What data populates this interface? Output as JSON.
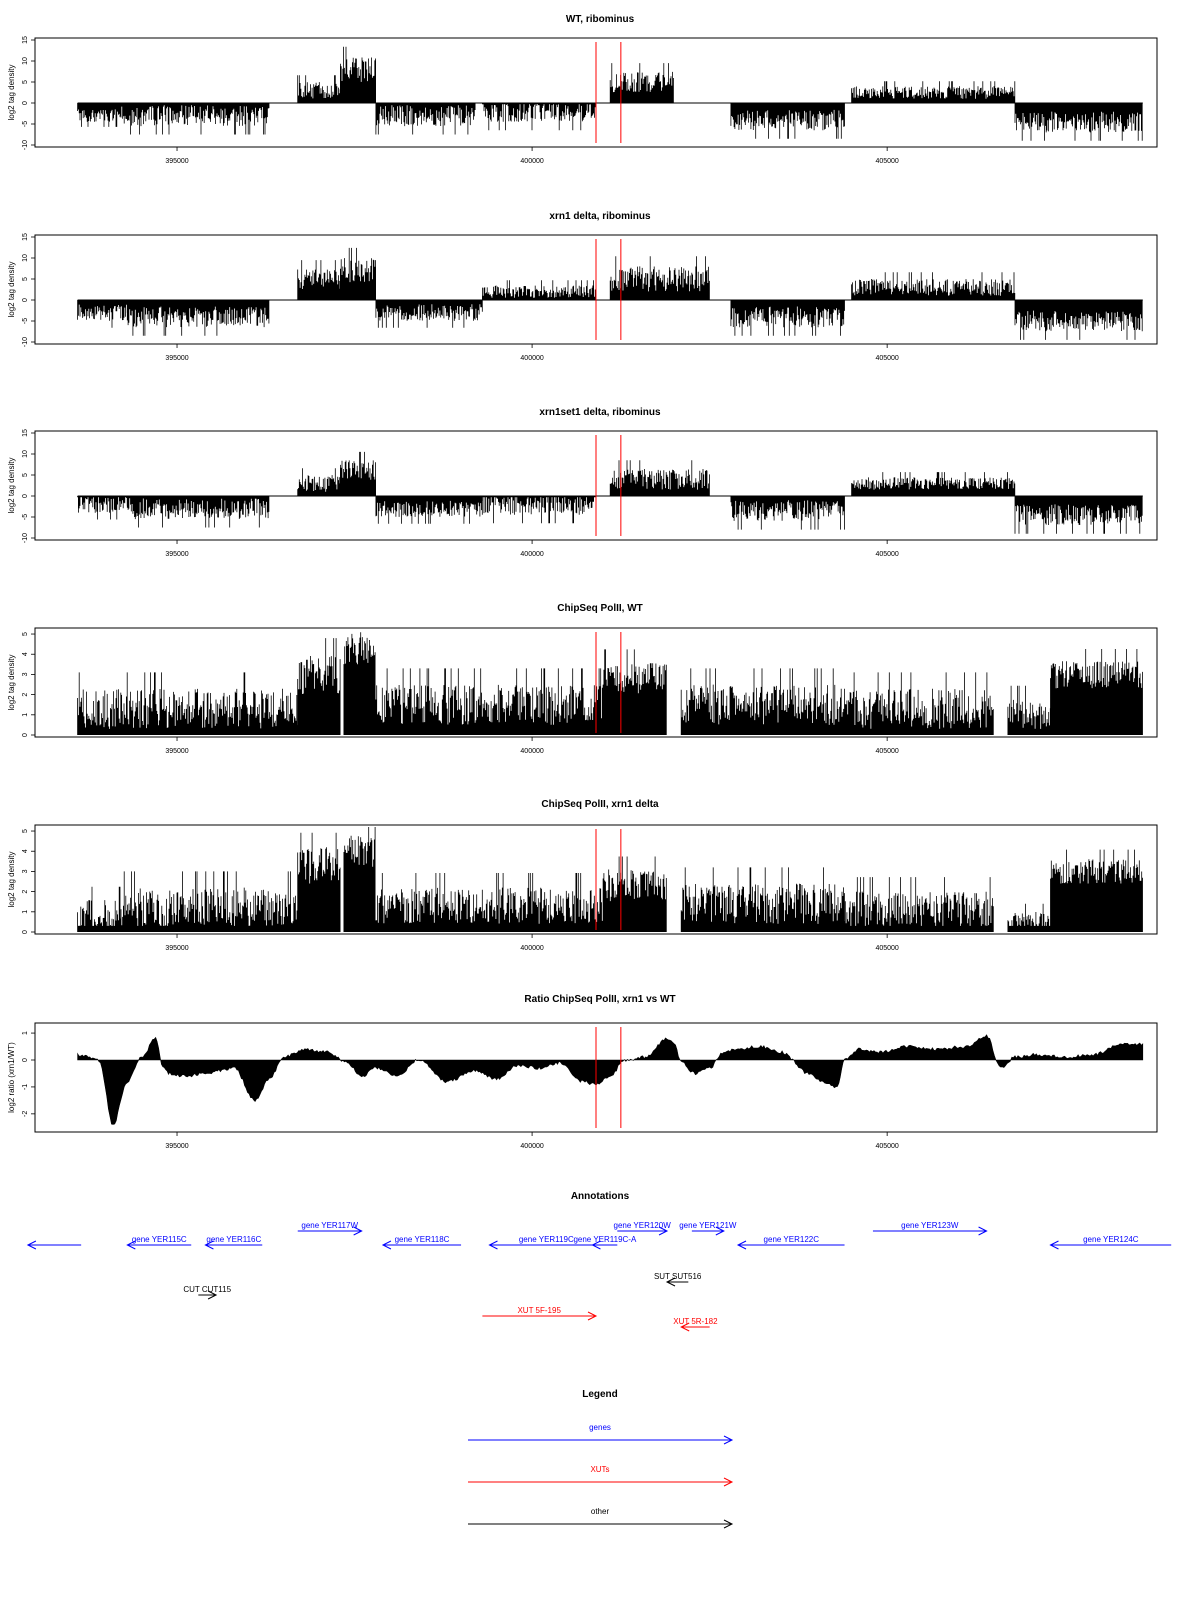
{
  "chart_data": [
    {
      "type": "bar",
      "title": "WT, ribominus",
      "ylabel": "log2 tag density",
      "ylim": [
        -10,
        15
      ],
      "yticks": [
        -10,
        -5,
        0,
        5,
        10,
        15
      ],
      "xlim": [
        393000,
        408800
      ],
      "xticks": [
        395000,
        400000,
        405000
      ],
      "xtick_labels": [
        "395000",
        "400000",
        "405000"
      ],
      "markers": [
        400900,
        401250
      ],
      "segments": [
        {
          "start": 393600,
          "end": 394200,
          "mean": -3,
          "amp": 1.5,
          "seed": 1
        },
        {
          "start": 394200,
          "end": 396300,
          "mean": -3,
          "amp": 2.5,
          "seed": 2
        },
        {
          "start": 396700,
          "end": 397300,
          "mean": 3,
          "amp": 2,
          "seed": 3
        },
        {
          "start": 397300,
          "end": 397800,
          "mean": 8,
          "amp": 3,
          "seed": 4
        },
        {
          "start": 397800,
          "end": 399200,
          "mean": -3,
          "amp": 2.5,
          "seed": 5
        },
        {
          "start": 399300,
          "end": 400900,
          "mean": -2,
          "amp": 2.5,
          "seed": 6
        },
        {
          "start": 401100,
          "end": 402000,
          "mean": 5,
          "amp": 2.5,
          "seed": 7
        },
        {
          "start": 402800,
          "end": 404400,
          "mean": -4,
          "amp": 2.5,
          "seed": 8
        },
        {
          "start": 404500,
          "end": 406800,
          "mean": 2.5,
          "amp": 1.5,
          "seed": 9
        },
        {
          "start": 406800,
          "end": 408600,
          "mean": -4.5,
          "amp": 2.5,
          "seed": 10
        }
      ]
    },
    {
      "type": "bar",
      "title": "xrn1 delta, ribominus",
      "ylabel": "log2 tag density",
      "ylim": [
        -10,
        15
      ],
      "yticks": [
        -10,
        -5,
        0,
        5,
        10,
        15
      ],
      "xlim": [
        393000,
        408800
      ],
      "xticks": [
        395000,
        400000,
        405000
      ],
      "xtick_labels": [
        "395000",
        "400000",
        "405000"
      ],
      "markers": [
        400900,
        401250
      ],
      "segments": [
        {
          "start": 393600,
          "end": 394300,
          "mean": -3,
          "amp": 2,
          "seed": 11
        },
        {
          "start": 394300,
          "end": 396300,
          "mean": -4,
          "amp": 2.5,
          "seed": 12
        },
        {
          "start": 396700,
          "end": 397300,
          "mean": 5,
          "amp": 2.5,
          "seed": 13
        },
        {
          "start": 397300,
          "end": 397800,
          "mean": 7,
          "amp": 3,
          "seed": 14
        },
        {
          "start": 397800,
          "end": 399300,
          "mean": -3,
          "amp": 2,
          "seed": 15
        },
        {
          "start": 399300,
          "end": 400900,
          "mean": 2,
          "amp": 1.5,
          "seed": 16
        },
        {
          "start": 401100,
          "end": 402500,
          "mean": 5,
          "amp": 3,
          "seed": 17
        },
        {
          "start": 402800,
          "end": 404400,
          "mean": -4,
          "amp": 2.5,
          "seed": 18
        },
        {
          "start": 404500,
          "end": 406800,
          "mean": 3,
          "amp": 2,
          "seed": 19
        },
        {
          "start": 406800,
          "end": 408600,
          "mean": -5,
          "amp": 2.5,
          "seed": 20
        }
      ]
    },
    {
      "type": "bar",
      "title": "xrn1set1 delta, ribominus",
      "ylabel": "log2 tag density",
      "ylim": [
        -10,
        15
      ],
      "yticks": [
        -10,
        -5,
        0,
        5,
        10,
        15
      ],
      "xlim": [
        393000,
        408800
      ],
      "xticks": [
        395000,
        400000,
        405000
      ],
      "xtick_labels": [
        "395000",
        "400000",
        "405000"
      ],
      "markers": [
        400900,
        401250
      ],
      "segments": [
        {
          "start": 393600,
          "end": 394300,
          "mean": -2,
          "amp": 2,
          "seed": 21
        },
        {
          "start": 394300,
          "end": 396300,
          "mean": -3,
          "amp": 2.5,
          "seed": 22
        },
        {
          "start": 396700,
          "end": 397300,
          "mean": 3,
          "amp": 2,
          "seed": 23
        },
        {
          "start": 397300,
          "end": 397800,
          "mean": 6,
          "amp": 2.5,
          "seed": 24
        },
        {
          "start": 397800,
          "end": 399300,
          "mean": -3,
          "amp": 2,
          "seed": 25
        },
        {
          "start": 399300,
          "end": 400900,
          "mean": -2,
          "amp": 2.5,
          "seed": 26
        },
        {
          "start": 401100,
          "end": 402500,
          "mean": 4,
          "amp": 2.5,
          "seed": 27
        },
        {
          "start": 402800,
          "end": 404400,
          "mean": -3.5,
          "amp": 2.5,
          "seed": 28
        },
        {
          "start": 404500,
          "end": 406800,
          "mean": 3,
          "amp": 1.5,
          "seed": 29
        },
        {
          "start": 406800,
          "end": 408600,
          "mean": -4.5,
          "amp": 2.5,
          "seed": 30
        }
      ]
    },
    {
      "type": "bar",
      "title": "ChipSeq PolII, WT",
      "ylabel": "log2 tag density",
      "ylim": [
        0,
        5.2
      ],
      "yticks": [
        0,
        1,
        2,
        3,
        4,
        5
      ],
      "xlim": [
        393000,
        408800
      ],
      "xticks": [
        395000,
        400000,
        405000
      ],
      "xtick_labels": [
        "395000",
        "400000",
        "405000"
      ],
      "markers": [
        400900,
        401250
      ],
      "segments": [
        {
          "start": 393600,
          "end": 396700,
          "mean": 1.3,
          "amp": 1.0,
          "seed": 31
        },
        {
          "start": 396700,
          "end": 397300,
          "mean": 3.0,
          "amp": 1.0,
          "seed": 32
        },
        {
          "start": 397350,
          "end": 397800,
          "mean": 4.3,
          "amp": 0.8,
          "seed": 33
        },
        {
          "start": 397800,
          "end": 401000,
          "mean": 1.5,
          "amp": 1.0,
          "seed": 34
        },
        {
          "start": 401000,
          "end": 401900,
          "mean": 2.8,
          "amp": 0.8,
          "seed": 35
        },
        {
          "start": 402100,
          "end": 404400,
          "mean": 1.5,
          "amp": 1.0,
          "seed": 36
        },
        {
          "start": 404400,
          "end": 406500,
          "mean": 1.3,
          "amp": 1.0,
          "seed": 37
        },
        {
          "start": 406700,
          "end": 407300,
          "mean": 1.0,
          "amp": 0.8,
          "seed": 38
        },
        {
          "start": 407300,
          "end": 408600,
          "mean": 3.0,
          "amp": 0.7,
          "seed": 39
        }
      ]
    },
    {
      "type": "bar",
      "title": "ChipSeq PolII, xrn1 delta",
      "ylabel": "log2 tag density",
      "ylim": [
        0,
        5.2
      ],
      "yticks": [
        0,
        1,
        2,
        3,
        4,
        5
      ],
      "xlim": [
        393000,
        408800
      ],
      "xticks": [
        395000,
        400000,
        405000
      ],
      "xtick_labels": [
        "395000",
        "400000",
        "405000"
      ],
      "markers": [
        400900,
        401250
      ],
      "segments": [
        {
          "start": 393600,
          "end": 394200,
          "mean": 0.8,
          "amp": 0.8,
          "seed": 41
        },
        {
          "start": 394200,
          "end": 396700,
          "mean": 1.2,
          "amp": 1.0,
          "seed": 42
        },
        {
          "start": 396700,
          "end": 397300,
          "mean": 3.3,
          "amp": 0.9,
          "seed": 43
        },
        {
          "start": 397350,
          "end": 397800,
          "mean": 4.0,
          "amp": 0.8,
          "seed": 44
        },
        {
          "start": 397800,
          "end": 401000,
          "mean": 1.3,
          "amp": 0.9,
          "seed": 45
        },
        {
          "start": 401000,
          "end": 401900,
          "mean": 2.3,
          "amp": 0.8,
          "seed": 46
        },
        {
          "start": 402100,
          "end": 404400,
          "mean": 1.4,
          "amp": 1.0,
          "seed": 47
        },
        {
          "start": 404400,
          "end": 406500,
          "mean": 1.1,
          "amp": 0.9,
          "seed": 48
        },
        {
          "start": 406700,
          "end": 407300,
          "mean": 0.5,
          "amp": 0.5,
          "seed": 49
        },
        {
          "start": 407300,
          "end": 408600,
          "mean": 3.0,
          "amp": 0.6,
          "seed": 50
        }
      ]
    },
    {
      "type": "area",
      "title": "Ratio ChipSeq PolII, xrn1 vs WT",
      "ylabel": "log2 ratio (xrn1/WT)",
      "ylim": [
        -2.6,
        1.3
      ],
      "yticks": [
        -2,
        -1,
        0,
        1
      ],
      "xlim": [
        393000,
        408800
      ],
      "xticks": [
        395000,
        400000,
        405000
      ],
      "xtick_labels": [
        "395000",
        "400000",
        "405000"
      ],
      "markers": [
        400900,
        401250
      ],
      "x": [
        393600,
        393900,
        394100,
        394300,
        394500,
        394700,
        394800,
        394900,
        395100,
        395400,
        395800,
        396100,
        396300,
        396500,
        396800,
        397100,
        397400,
        397600,
        397800,
        398100,
        398400,
        398800,
        399200,
        399500,
        399800,
        400100,
        400400,
        400700,
        400900,
        401100,
        401300,
        401600,
        401900,
        402000,
        402100,
        402300,
        402500,
        402700,
        402900,
        403200,
        403500,
        403900,
        404100,
        404300,
        404400,
        404600,
        404900,
        405300,
        405700,
        406100,
        406400,
        406600,
        406800,
        407100,
        407500,
        407900,
        408300,
        408600
      ],
      "y": [
        0.2,
        0.0,
        -2.4,
        -0.8,
        0.1,
        0.8,
        -0.3,
        -0.5,
        -0.6,
        -0.5,
        -0.3,
        -1.5,
        -0.7,
        0.1,
        0.4,
        0.3,
        -0.1,
        -0.6,
        -0.3,
        -0.6,
        0.0,
        -0.8,
        -0.4,
        -0.7,
        -0.2,
        -0.3,
        -0.1,
        -0.8,
        -0.9,
        -0.6,
        0.0,
        0.1,
        0.8,
        0.6,
        -0.1,
        -0.5,
        -0.3,
        0.3,
        0.4,
        0.5,
        0.3,
        -0.5,
        -0.8,
        -1.0,
        0.0,
        0.4,
        0.3,
        0.5,
        0.4,
        0.5,
        0.9,
        -0.3,
        0.1,
        0.2,
        0.1,
        0.2,
        0.6,
        0.6
      ]
    }
  ],
  "annotations": {
    "title": "Annotations",
    "genes": [
      {
        "label": "",
        "start": 392900,
        "end": 393650,
        "strand": "-",
        "row": 1
      },
      {
        "label": "gene YER115C",
        "start": 394300,
        "end": 395200,
        "strand": "-",
        "row": 1
      },
      {
        "label": "gene YER116C",
        "start": 395400,
        "end": 396200,
        "strand": "-",
        "row": 1
      },
      {
        "label": "gene YER117W",
        "start": 396700,
        "end": 397600,
        "strand": "+",
        "row": 0
      },
      {
        "label": "gene YER118C",
        "start": 397900,
        "end": 399000,
        "strand": "-",
        "row": 1
      },
      {
        "label": "gene YER119C",
        "start": 399400,
        "end": 401000,
        "strand": "-",
        "row": 1
      },
      {
        "label": "gene YER119C-A",
        "start": 400850,
        "end": 401200,
        "strand": "-",
        "row": 1
      },
      {
        "label": "gene YER120W",
        "start": 401200,
        "end": 401900,
        "strand": "+",
        "row": 0
      },
      {
        "label": "gene YER121W",
        "start": 402250,
        "end": 402700,
        "strand": "+",
        "row": 0
      },
      {
        "label": "gene YER122C",
        "start": 402900,
        "end": 404400,
        "strand": "-",
        "row": 1
      },
      {
        "label": "gene YER123W",
        "start": 404800,
        "end": 406400,
        "strand": "+",
        "row": 0
      },
      {
        "label": "gene YER124C",
        "start": 407300,
        "end": 409000,
        "strand": "-",
        "row": 1
      }
    ],
    "others": [
      {
        "label": "CUT CUT115",
        "start": 395300,
        "end": 395550,
        "strand": "+",
        "row": 3
      },
      {
        "label": "SUT SUT516",
        "start": 401900,
        "end": 402200,
        "strand": "-",
        "row": 2
      }
    ],
    "xuts": [
      {
        "label": "XUT 5F-195",
        "start": 399300,
        "end": 400900,
        "strand": "+",
        "row": 4
      },
      {
        "label": "XUT 5R-182",
        "start": 402100,
        "end": 402500,
        "strand": "-",
        "row": 5
      }
    ]
  },
  "legend": {
    "title": "Legend",
    "items": [
      {
        "label": "genes",
        "color": "#0000ff"
      },
      {
        "label": "XUTs",
        "color": "#ff0000"
      },
      {
        "label": "other",
        "color": "#000000"
      }
    ]
  }
}
